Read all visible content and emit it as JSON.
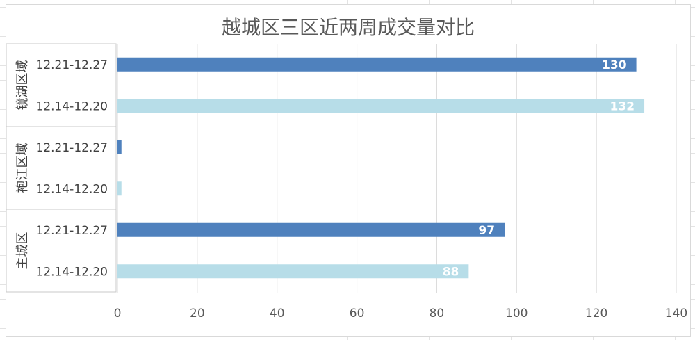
{
  "colors": {
    "series_current": "#4f81bd",
    "series_previous": "#b7dde8",
    "gridline": "#d9d9d9",
    "text": "#595959"
  },
  "chart_data": {
    "type": "bar",
    "orientation": "horizontal",
    "title": "越城区三区近两周成交量对比",
    "xlim": [
      0,
      140
    ],
    "x_ticks": [
      0,
      20,
      40,
      60,
      80,
      100,
      120,
      140
    ],
    "grid": true,
    "legend": "none",
    "groups": [
      {
        "name": "镜湖区域",
        "bars": [
          {
            "label": "12.21-12.27",
            "series": "current",
            "value": 130,
            "data_label": "130"
          },
          {
            "label": "12.14-12.20",
            "series": "previous",
            "value": 132,
            "data_label": "132"
          }
        ]
      },
      {
        "name": "袍江区域",
        "bars": [
          {
            "label": "12.21-12.27",
            "series": "current",
            "value": 1,
            "data_label": ""
          },
          {
            "label": "12.14-12.20",
            "series": "previous",
            "value": 1,
            "data_label": ""
          }
        ]
      },
      {
        "name": "主城区",
        "bars": [
          {
            "label": "12.21-12.27",
            "series": "current",
            "value": 97,
            "data_label": "97"
          },
          {
            "label": "12.14-12.20",
            "series": "previous",
            "value": 88,
            "data_label": "88"
          }
        ]
      }
    ]
  }
}
